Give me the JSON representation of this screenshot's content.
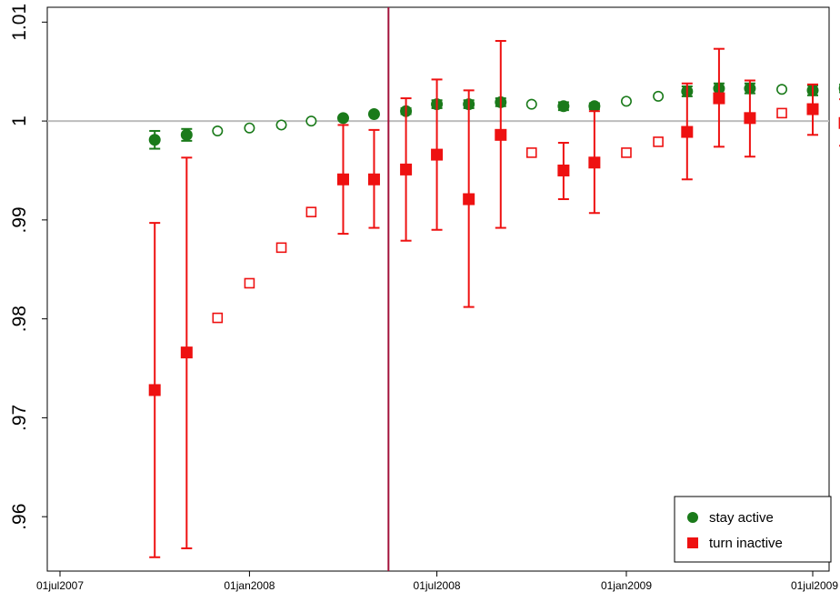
{
  "chart_data": {
    "type": "scatter",
    "title": "",
    "xlabel": "",
    "ylabel": "",
    "xlim": [
      "2007-07-01",
      "2009-07-01"
    ],
    "ylim": [
      0.9545,
      1.0115
    ],
    "x_ticks": [
      {
        "date": "2007-07-01",
        "label": "01jul2007"
      },
      {
        "date": "2008-01-01",
        "label": "01jan2008"
      },
      {
        "date": "2008-07-01",
        "label": "01jul2008"
      },
      {
        "date": "2009-01-01",
        "label": "01jan2009"
      },
      {
        "date": "2009-07-01",
        "label": "01jul2009"
      }
    ],
    "y_ticks": [
      {
        "value": 0.96,
        "label": ".96"
      },
      {
        "value": 0.97,
        "label": ".97"
      },
      {
        "value": 0.98,
        "label": ".98"
      },
      {
        "value": 0.99,
        "label": ".99"
      },
      {
        "value": 1.0,
        "label": "1"
      },
      {
        "value": 1.01,
        "label": "1.01"
      }
    ],
    "reference_line_y": 1.0,
    "reference_line_x": "2008-05-15",
    "legend": {
      "position": "bottom-right",
      "entries": [
        {
          "label": "stay active",
          "color": "#1a7a1a",
          "marker": "circle"
        },
        {
          "label": "turn inactive",
          "color": "#ee1111",
          "marker": "square"
        }
      ]
    },
    "series": [
      {
        "name": "stay active",
        "color": "#1a7a1a",
        "marker": "circle",
        "points": [
          {
            "x": "2007-10-01",
            "y": 0.9981,
            "lo": 0.9972,
            "hi": 0.999,
            "filled": true
          },
          {
            "x": "2007-11-01",
            "y": 0.9986,
            "lo": 0.998,
            "hi": 0.9992,
            "filled": true
          },
          {
            "x": "2007-12-01",
            "y": 0.999,
            "filled": false
          },
          {
            "x": "2008-01-01",
            "y": 0.9993,
            "filled": false
          },
          {
            "x": "2008-02-01",
            "y": 0.9996,
            "filled": false
          },
          {
            "x": "2008-03-01",
            "y": 1.0,
            "filled": false
          },
          {
            "x": "2008-04-01",
            "y": 1.0003,
            "filled": true
          },
          {
            "x": "2008-05-01",
            "y": 1.0007,
            "filled": true
          },
          {
            "x": "2008-06-01",
            "y": 1.001,
            "lo": 1.0007,
            "hi": 1.0013,
            "filled": true
          },
          {
            "x": "2008-07-01",
            "y": 1.0017,
            "lo": 1.0013,
            "hi": 1.0021,
            "filled": true
          },
          {
            "x": "2008-08-01",
            "y": 1.0017,
            "lo": 1.0013,
            "hi": 1.0021,
            "filled": true
          },
          {
            "x": "2008-09-01",
            "y": 1.0019,
            "lo": 1.0015,
            "hi": 1.0023,
            "filled": true
          },
          {
            "x": "2008-10-01",
            "y": 1.0017,
            "filled": false
          },
          {
            "x": "2008-11-01",
            "y": 1.0015,
            "lo": 1.0011,
            "hi": 1.0019,
            "filled": true
          },
          {
            "x": "2008-12-01",
            "y": 1.0015,
            "lo": 1.0012,
            "hi": 1.0018,
            "filled": true
          },
          {
            "x": "2009-01-01",
            "y": 1.002,
            "filled": false
          },
          {
            "x": "2009-02-01",
            "y": 1.0025,
            "filled": false
          },
          {
            "x": "2009-03-01",
            "y": 1.003,
            "lo": 1.0025,
            "hi": 1.0035,
            "filled": true
          },
          {
            "x": "2009-04-01",
            "y": 1.0033,
            "lo": 1.0028,
            "hi": 1.0038,
            "filled": true
          },
          {
            "x": "2009-05-01",
            "y": 1.0033,
            "lo": 1.0028,
            "hi": 1.0038,
            "filled": true
          },
          {
            "x": "2009-06-01",
            "y": 1.0032,
            "filled": false
          },
          {
            "x": "2009-07-01",
            "y": 1.0031,
            "lo": 1.0026,
            "hi": 1.0036,
            "filled": true
          },
          {
            "x": "2009-08-01",
            "y": 1.0033,
            "lo": 1.0029,
            "hi": 1.0037,
            "filled": true
          }
        ]
      },
      {
        "name": "turn inactive",
        "color": "#ee1111",
        "marker": "square",
        "points": [
          {
            "x": "2007-10-01",
            "y": 0.9728,
            "lo": 0.9559,
            "hi": 0.9897,
            "filled": true
          },
          {
            "x": "2007-11-01",
            "y": 0.9766,
            "lo": 0.9568,
            "hi": 0.9963,
            "filled": true
          },
          {
            "x": "2007-12-01",
            "y": 0.9801,
            "filled": false
          },
          {
            "x": "2008-01-01",
            "y": 0.9836,
            "filled": false
          },
          {
            "x": "2008-02-01",
            "y": 0.9872,
            "filled": false
          },
          {
            "x": "2008-03-01",
            "y": 0.9908,
            "filled": false
          },
          {
            "x": "2008-04-01",
            "y": 0.9941,
            "lo": 0.9886,
            "hi": 0.9996,
            "filled": true
          },
          {
            "x": "2008-05-01",
            "y": 0.9941,
            "lo": 0.9892,
            "hi": 0.9991,
            "filled": true
          },
          {
            "x": "2008-06-01",
            "y": 0.9951,
            "lo": 0.9879,
            "hi": 1.0023,
            "filled": true
          },
          {
            "x": "2008-07-01",
            "y": 0.9966,
            "lo": 0.989,
            "hi": 1.0042,
            "filled": true
          },
          {
            "x": "2008-08-01",
            "y": 0.9921,
            "lo": 0.9812,
            "hi": 1.0031,
            "filled": true
          },
          {
            "x": "2008-09-01",
            "y": 0.9986,
            "lo": 0.9892,
            "hi": 1.0081,
            "filled": true
          },
          {
            "x": "2008-10-01",
            "y": 0.9968,
            "filled": false
          },
          {
            "x": "2008-11-01",
            "y": 0.995,
            "lo": 0.9921,
            "hi": 0.9978,
            "filled": true
          },
          {
            "x": "2008-12-01",
            "y": 0.9958,
            "lo": 0.9907,
            "hi": 1.001,
            "filled": true
          },
          {
            "x": "2009-01-01",
            "y": 0.9968,
            "filled": false
          },
          {
            "x": "2009-02-01",
            "y": 0.9979,
            "filled": false
          },
          {
            "x": "2009-03-01",
            "y": 0.9989,
            "lo": 0.9941,
            "hi": 1.0038,
            "filled": true
          },
          {
            "x": "2009-04-01",
            "y": 1.0023,
            "lo": 0.9974,
            "hi": 1.0073,
            "filled": true
          },
          {
            "x": "2009-05-01",
            "y": 1.0003,
            "lo": 0.9964,
            "hi": 1.0041,
            "filled": true
          },
          {
            "x": "2009-06-01",
            "y": 1.0008,
            "filled": false
          },
          {
            "x": "2009-07-01",
            "y": 1.0012,
            "lo": 0.9986,
            "hi": 1.0037,
            "filled": true
          },
          {
            "x": "2009-08-01",
            "y": 0.9998,
            "lo": 0.9975,
            "hi": 1.0022,
            "filled": true
          }
        ]
      }
    ]
  }
}
